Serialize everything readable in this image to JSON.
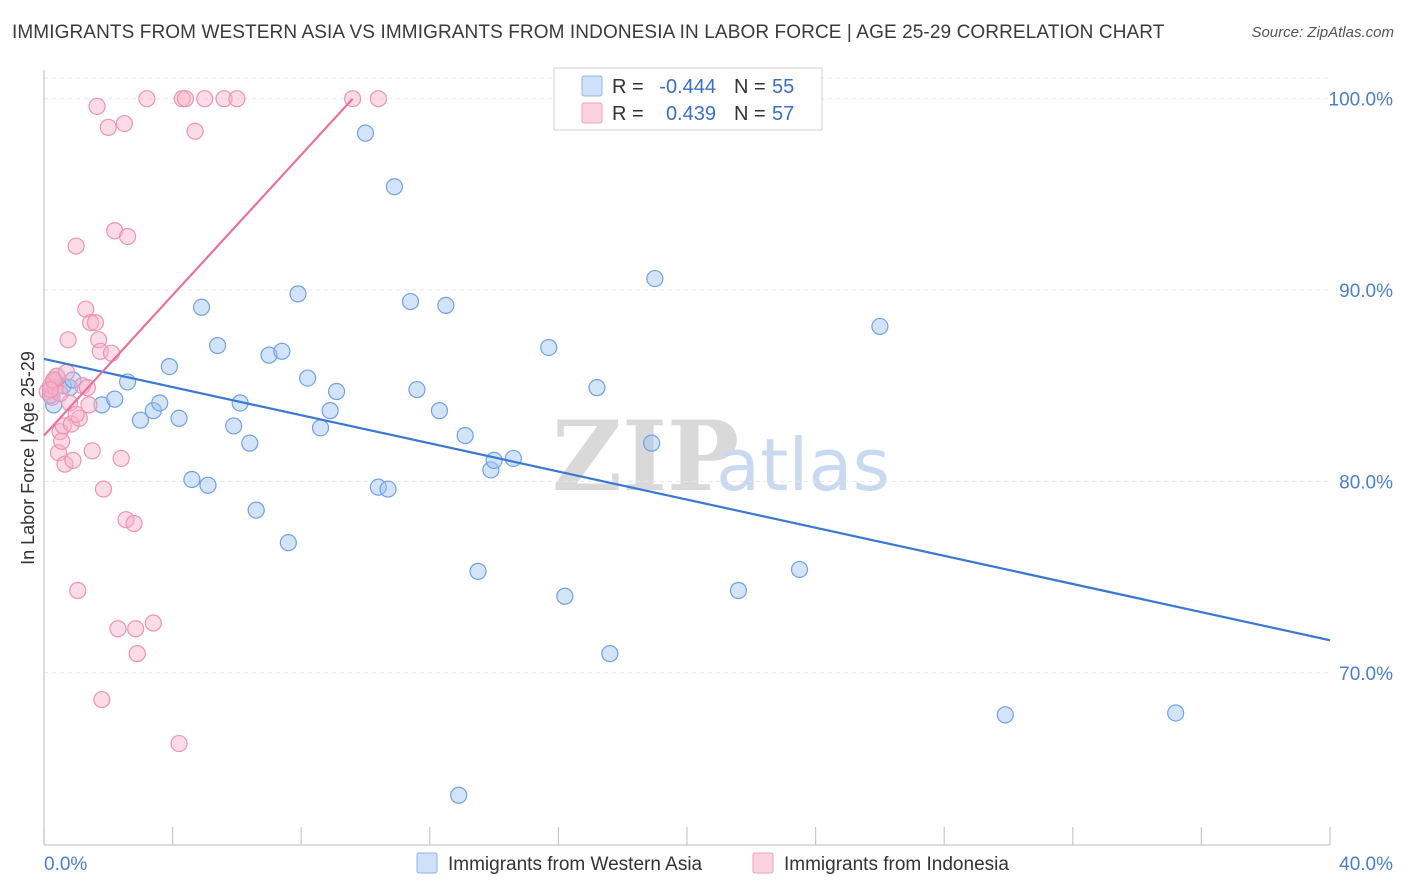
{
  "title": "IMMIGRANTS FROM WESTERN ASIA VS IMMIGRANTS FROM INDONESIA IN LABOR FORCE | AGE 25-29 CORRELATION CHART",
  "source": "Source: ZipAtlas.com",
  "watermark": {
    "zip": "ZIP",
    "atlas": "atlas"
  },
  "legend": {
    "r_label": "R =",
    "n_label": "N =",
    "rows": [
      {
        "r": "-0.444",
        "n": "55"
      },
      {
        "r": "0.439",
        "n": "57"
      }
    ]
  },
  "chart_data": {
    "type": "scatter",
    "xlabel": "",
    "ylabel": "In Labor Force | Age 25-29",
    "xlim": [
      0,
      40
    ],
    "ylim": [
      61,
      101.5
    ],
    "x_tick_labels": [
      "0.0%",
      "40.0%"
    ],
    "y_ticks": [
      70,
      80,
      90,
      100
    ],
    "y_tick_labels": [
      "70.0%",
      "80.0%",
      "90.0%",
      "100.0%"
    ],
    "grid": true,
    "legend_position": "top-center",
    "series": [
      {
        "name": "Immigrants from Western Asia",
        "color": "#6fa1e8",
        "line_color": "#3a78d4",
        "trend": {
          "x": [
            0,
            40
          ],
          "y": [
            86.4,
            71.7
          ]
        },
        "points": [
          [
            0.3,
            84.0
          ],
          [
            0.4,
            85.5
          ],
          [
            0.6,
            85.0
          ],
          [
            0.8,
            84.9
          ],
          [
            0.9,
            85.3
          ],
          [
            1.8,
            84.0
          ],
          [
            2.2,
            84.3
          ],
          [
            2.6,
            85.2
          ],
          [
            3.0,
            83.2
          ],
          [
            3.4,
            83.7
          ],
          [
            3.6,
            84.1
          ],
          [
            3.9,
            86.0
          ],
          [
            4.2,
            83.3
          ],
          [
            4.6,
            80.1
          ],
          [
            4.9,
            89.1
          ],
          [
            5.1,
            79.8
          ],
          [
            5.4,
            87.1
          ],
          [
            5.9,
            82.9
          ],
          [
            6.1,
            84.1
          ],
          [
            6.4,
            82.0
          ],
          [
            6.6,
            78.5
          ],
          [
            7.0,
            86.6
          ],
          [
            7.4,
            86.8
          ],
          [
            7.6,
            76.8
          ],
          [
            7.9,
            89.8
          ],
          [
            8.2,
            85.4
          ],
          [
            8.6,
            82.8
          ],
          [
            8.9,
            83.7
          ],
          [
            9.1,
            84.7
          ],
          [
            10.0,
            98.2
          ],
          [
            10.4,
            79.7
          ],
          [
            10.7,
            79.6
          ],
          [
            10.9,
            95.4
          ],
          [
            11.4,
            89.4
          ],
          [
            11.6,
            84.8
          ],
          [
            12.3,
            83.7
          ],
          [
            12.5,
            89.2
          ],
          [
            12.9,
            63.6
          ],
          [
            13.1,
            82.4
          ],
          [
            13.5,
            75.3
          ],
          [
            13.9,
            80.6
          ],
          [
            14.0,
            81.1
          ],
          [
            14.6,
            81.2
          ],
          [
            15.7,
            87.0
          ],
          [
            16.2,
            74.0
          ],
          [
            17.2,
            84.9
          ],
          [
            17.6,
            71.0
          ],
          [
            18.9,
            82.0
          ],
          [
            19.0,
            90.6
          ],
          [
            21.6,
            74.3
          ],
          [
            23.5,
            75.4
          ],
          [
            26.0,
            88.1
          ],
          [
            29.9,
            67.8
          ],
          [
            35.2,
            67.9
          ],
          [
            0.2,
            84.5
          ]
        ]
      },
      {
        "name": "Immigrants from Indonesia",
        "color": "#f4a3bd",
        "line_color": "#e8729a",
        "trend": {
          "x": [
            0,
            9.6
          ],
          "y": [
            82.4,
            100.0
          ]
        },
        "points": [
          [
            0.1,
            84.7
          ],
          [
            0.2,
            85.0
          ],
          [
            0.25,
            84.4
          ],
          [
            0.3,
            85.2
          ],
          [
            0.35,
            84.9
          ],
          [
            0.4,
            85.5
          ],
          [
            0.45,
            81.5
          ],
          [
            0.5,
            82.6
          ],
          [
            0.55,
            82.1
          ],
          [
            0.6,
            82.9
          ],
          [
            0.65,
            80.9
          ],
          [
            0.7,
            85.7
          ],
          [
            0.75,
            87.4
          ],
          [
            0.8,
            84.1
          ],
          [
            0.85,
            83.0
          ],
          [
            0.9,
            81.1
          ],
          [
            1.0,
            92.3
          ],
          [
            1.05,
            74.3
          ],
          [
            1.1,
            83.3
          ],
          [
            1.2,
            85.0
          ],
          [
            1.3,
            89.0
          ],
          [
            1.35,
            84.9
          ],
          [
            1.4,
            84.0
          ],
          [
            1.45,
            88.3
          ],
          [
            1.5,
            81.6
          ],
          [
            1.6,
            88.3
          ],
          [
            1.65,
            99.6
          ],
          [
            1.7,
            87.4
          ],
          [
            1.75,
            86.8
          ],
          [
            1.8,
            68.6
          ],
          [
            1.85,
            79.6
          ],
          [
            2.0,
            98.5
          ],
          [
            2.1,
            86.7
          ],
          [
            2.2,
            93.1
          ],
          [
            2.3,
            72.3
          ],
          [
            2.4,
            81.2
          ],
          [
            2.5,
            98.7
          ],
          [
            2.55,
            78.0
          ],
          [
            2.6,
            92.8
          ],
          [
            2.8,
            77.8
          ],
          [
            2.85,
            72.3
          ],
          [
            2.9,
            71.0
          ],
          [
            3.2,
            100.0
          ],
          [
            3.4,
            72.6
          ],
          [
            4.2,
            66.3
          ],
          [
            4.3,
            100.0
          ],
          [
            4.4,
            100.0
          ],
          [
            4.7,
            98.3
          ],
          [
            5.0,
            100.0
          ],
          [
            5.6,
            100.0
          ],
          [
            6.0,
            100.0
          ],
          [
            9.6,
            100.0
          ],
          [
            10.4,
            100.0
          ],
          [
            0.3,
            85.3
          ],
          [
            0.5,
            84.6
          ],
          [
            1.0,
            83.5
          ],
          [
            0.2,
            84.8
          ]
        ]
      }
    ]
  }
}
